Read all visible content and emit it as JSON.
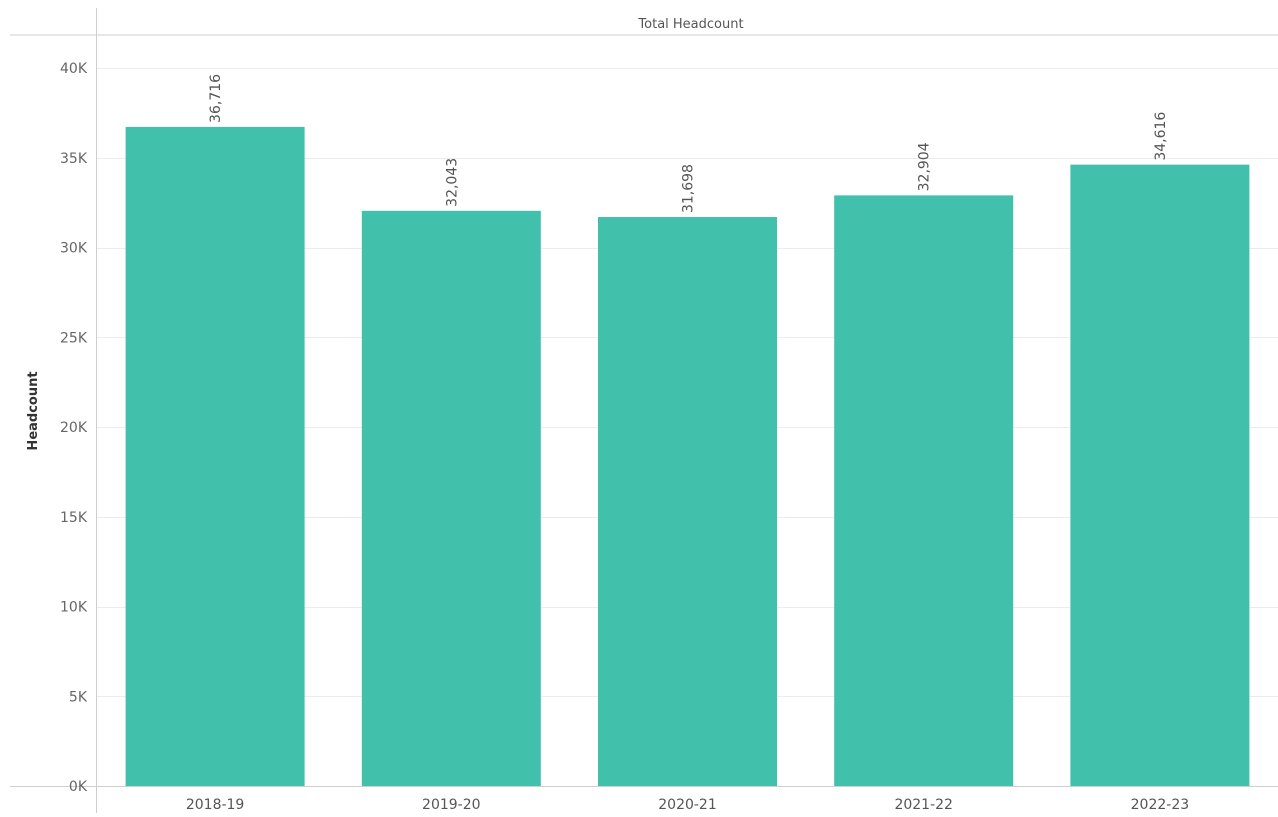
{
  "header": {
    "title": "Total Headcount"
  },
  "chart_data": {
    "type": "bar",
    "title": "Total Headcount",
    "xlabel": "",
    "ylabel": "Headcount",
    "categories": [
      "2018-19",
      "2019-20",
      "2020-21",
      "2021-22",
      "2022-23"
    ],
    "values": [
      36716,
      32043,
      31698,
      32904,
      34616
    ],
    "data_labels": [
      "36,716",
      "32,043",
      "31,698",
      "32,904",
      "34,616"
    ],
    "ylim": [
      0,
      41500
    ],
    "yticks": [
      0,
      5000,
      10000,
      15000,
      20000,
      25000,
      30000,
      35000,
      40000
    ],
    "ytick_labels": [
      "0K",
      "5K",
      "10K",
      "15K",
      "20K",
      "25K",
      "30K",
      "35K",
      "40K"
    ],
    "grid": true,
    "legend": "none",
    "bar_color": "#41c1ab"
  }
}
